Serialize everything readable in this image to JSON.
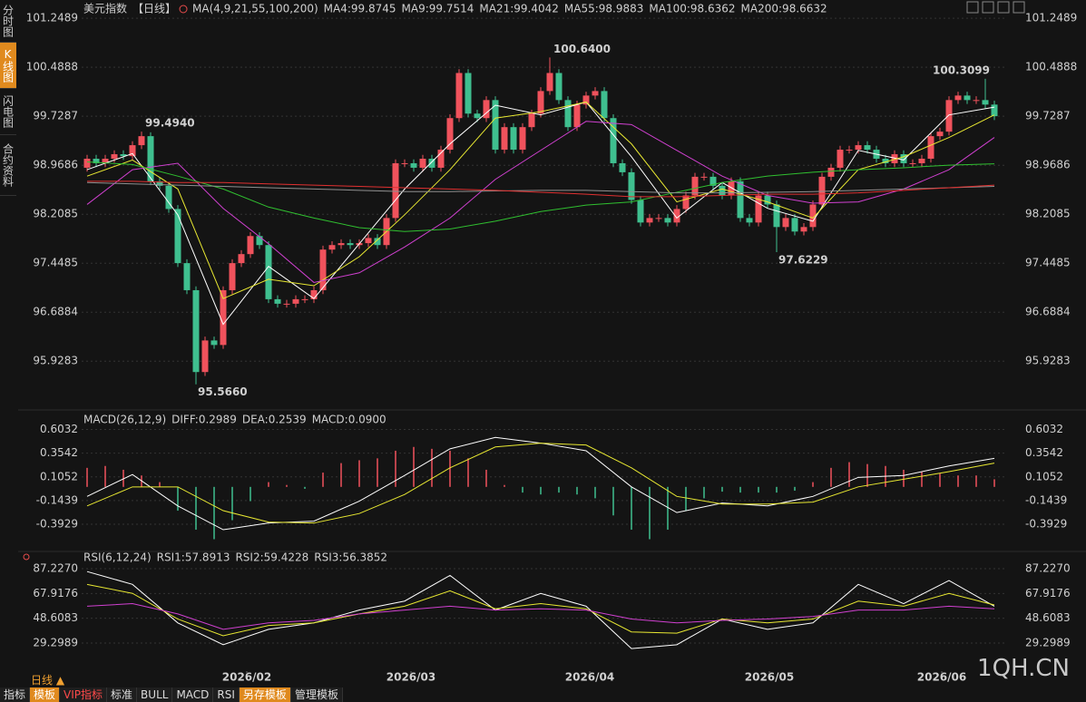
{
  "chart_data": [
    {
      "type": "candlestick",
      "title": "美元指数",
      "period": "【日线】",
      "legend_label": "MA(4,9,21,55,100,200)",
      "up_color": "#f0525c",
      "down_color": "#3fbf8f",
      "grid": true,
      "ylim": [
        95.2,
        101.42
      ],
      "yticks": [
        101.2489,
        100.4888,
        99.7287,
        98.9686,
        98.2085,
        97.4485,
        96.6884,
        95.9283
      ],
      "xticks": [
        {
          "value": 17.6,
          "label": "2026/02"
        },
        {
          "value": 35.7,
          "label": "2026/03"
        },
        {
          "value": 55.4,
          "label": "2026/04"
        },
        {
          "value": 75.2,
          "label": "2026/05"
        },
        {
          "value": 94.2,
          "label": "2026/06"
        }
      ],
      "candles": [
        [
          98.93,
          99.13,
          98.87,
          99.07
        ],
        [
          99.07,
          99.13,
          98.94,
          99.0
        ],
        [
          99.0,
          99.13,
          98.94,
          99.07
        ],
        [
          99.07,
          99.2,
          99.01,
          99.14
        ],
        [
          99.14,
          99.2,
          99.05,
          99.11
        ],
        [
          99.11,
          99.34,
          99.05,
          99.28
        ],
        [
          99.28,
          99.49,
          99.22,
          99.42
        ],
        [
          99.42,
          99.48,
          98.66,
          98.72
        ],
        [
          98.72,
          98.78,
          98.59,
          98.65
        ],
        [
          98.65,
          98.71,
          98.23,
          98.29
        ],
        [
          98.29,
          98.35,
          97.39,
          97.45
        ],
        [
          97.45,
          97.51,
          96.97,
          97.03
        ],
        [
          97.03,
          97.09,
          95.57,
          95.76
        ],
        [
          95.76,
          96.31,
          95.7,
          96.25
        ],
        [
          96.25,
          96.31,
          96.12,
          96.18
        ],
        [
          96.18,
          97.09,
          96.12,
          97.03
        ],
        [
          97.03,
          97.51,
          96.97,
          97.45
        ],
        [
          97.45,
          97.65,
          97.39,
          97.59
        ],
        [
          97.59,
          97.93,
          97.53,
          97.87
        ],
        [
          97.87,
          97.93,
          97.67,
          97.73
        ],
        [
          97.73,
          97.79,
          96.83,
          96.89
        ],
        [
          96.89,
          96.95,
          96.76,
          96.82
        ],
        [
          96.82,
          96.88,
          96.76,
          96.82
        ],
        [
          96.82,
          96.95,
          96.76,
          96.89
        ],
        [
          96.89,
          96.95,
          96.83,
          96.89
        ],
        [
          96.89,
          97.09,
          96.83,
          97.03
        ],
        [
          97.03,
          97.72,
          96.97,
          97.66
        ],
        [
          97.66,
          97.79,
          97.6,
          97.73
        ],
        [
          97.73,
          97.82,
          97.67,
          97.76
        ],
        [
          97.76,
          97.82,
          97.67,
          97.73
        ],
        [
          97.73,
          97.82,
          97.67,
          97.76
        ],
        [
          97.76,
          97.9,
          97.7,
          97.84
        ],
        [
          97.84,
          97.9,
          97.67,
          97.73
        ],
        [
          97.73,
          98.21,
          97.67,
          98.15
        ],
        [
          98.15,
          99.06,
          98.09,
          99.0
        ],
        [
          99.0,
          99.06,
          98.94,
          99.0
        ],
        [
          99.0,
          99.06,
          98.87,
          98.93
        ],
        [
          98.93,
          99.13,
          98.87,
          99.07
        ],
        [
          99.07,
          99.13,
          98.87,
          98.93
        ],
        [
          98.93,
          99.27,
          98.87,
          99.21
        ],
        [
          99.21,
          99.76,
          99.15,
          99.7
        ],
        [
          99.7,
          100.46,
          99.64,
          100.4
        ],
        [
          100.4,
          100.46,
          99.71,
          99.77
        ],
        [
          99.77,
          99.83,
          99.64,
          99.7
        ],
        [
          99.7,
          100.04,
          99.64,
          99.98
        ],
        [
          99.98,
          100.04,
          99.15,
          99.21
        ],
        [
          99.21,
          99.62,
          99.15,
          99.56
        ],
        [
          99.56,
          99.62,
          99.15,
          99.21
        ],
        [
          99.21,
          99.62,
          99.15,
          99.56
        ],
        [
          99.56,
          99.83,
          99.5,
          99.77
        ],
        [
          99.77,
          100.18,
          99.71,
          100.12
        ],
        [
          100.12,
          100.64,
          100.06,
          100.4
        ],
        [
          100.4,
          100.46,
          99.92,
          99.98
        ],
        [
          99.98,
          100.04,
          99.5,
          99.56
        ],
        [
          99.56,
          99.97,
          99.5,
          99.91
        ],
        [
          99.91,
          100.11,
          99.85,
          100.05
        ],
        [
          100.05,
          100.18,
          99.99,
          100.12
        ],
        [
          100.12,
          100.18,
          99.64,
          99.7
        ],
        [
          99.7,
          99.76,
          98.94,
          99.0
        ],
        [
          99.0,
          99.06,
          98.8,
          98.86
        ],
        [
          98.86,
          98.92,
          98.37,
          98.43
        ],
        [
          98.43,
          98.49,
          98.02,
          98.08
        ],
        [
          98.08,
          98.21,
          98.02,
          98.15
        ],
        [
          98.15,
          98.21,
          98.09,
          98.15
        ],
        [
          98.15,
          98.21,
          98.02,
          98.08
        ],
        [
          98.08,
          98.35,
          98.02,
          98.29
        ],
        [
          98.29,
          98.56,
          98.23,
          98.5
        ],
        [
          98.5,
          98.85,
          98.44,
          98.79
        ],
        [
          98.79,
          98.85,
          98.73,
          98.79
        ],
        [
          98.79,
          98.85,
          98.59,
          98.65
        ],
        [
          98.65,
          98.71,
          98.44,
          98.5
        ],
        [
          98.5,
          98.78,
          98.44,
          98.72
        ],
        [
          98.72,
          98.78,
          98.09,
          98.15
        ],
        [
          98.15,
          98.21,
          98.02,
          98.08
        ],
        [
          98.08,
          98.56,
          98.02,
          98.5
        ],
        [
          98.5,
          98.56,
          98.3,
          98.36
        ],
        [
          98.36,
          98.42,
          97.62,
          98.01
        ],
        [
          98.01,
          98.21,
          97.95,
          98.15
        ],
        [
          98.15,
          98.21,
          97.88,
          97.94
        ],
        [
          97.94,
          98.07,
          97.88,
          98.01
        ],
        [
          98.01,
          98.42,
          97.95,
          98.36
        ],
        [
          98.36,
          98.85,
          98.3,
          98.79
        ],
        [
          98.79,
          98.99,
          98.73,
          98.93
        ],
        [
          98.93,
          99.27,
          98.87,
          99.21
        ],
        [
          99.21,
          99.27,
          99.15,
          99.21
        ],
        [
          99.21,
          99.34,
          99.15,
          99.28
        ],
        [
          99.28,
          99.34,
          99.15,
          99.21
        ],
        [
          99.21,
          99.27,
          99.01,
          99.07
        ],
        [
          99.07,
          99.13,
          98.94,
          99.0
        ],
        [
          99.0,
          99.2,
          98.94,
          99.14
        ],
        [
          99.14,
          99.2,
          98.94,
          99.0
        ],
        [
          99.0,
          99.06,
          98.94,
          99.0
        ],
        [
          99.0,
          99.13,
          98.94,
          99.07
        ],
        [
          99.07,
          99.48,
          99.01,
          99.42
        ],
        [
          99.42,
          99.55,
          99.36,
          99.49
        ],
        [
          99.49,
          100.04,
          99.43,
          99.98
        ],
        [
          99.98,
          100.11,
          99.92,
          100.05
        ],
        [
          100.05,
          100.11,
          99.92,
          99.98
        ],
        [
          99.98,
          100.04,
          99.92,
          99.98
        ],
        [
          99.98,
          100.31,
          99.85,
          99.91
        ],
        [
          99.91,
          99.97,
          99.67,
          99.73
        ]
      ],
      "annotations": [
        {
          "label": "99.4940",
          "color": "#e84c4c"
        },
        {
          "label": "95.5660",
          "color": "#3fbf8f"
        },
        {
          "label": "100.6400",
          "color": "#e84c4c"
        },
        {
          "label": "100.3099",
          "color": "#e84c4c"
        },
        {
          "label": "97.6229",
          "color": "#3fbf8f"
        }
      ],
      "x": [
        0,
        5,
        10,
        15,
        20,
        25,
        30,
        35,
        40,
        45,
        50,
        55,
        60,
        65,
        70,
        75,
        80,
        85,
        90,
        95,
        100
      ],
      "series": [
        {
          "name": "MA4:99.8745",
          "color": "#ffffff",
          "values": [
            98.9,
            99.15,
            98.2,
            96.5,
            97.4,
            96.9,
            97.75,
            98.6,
            99.3,
            99.9,
            99.75,
            99.95,
            99.1,
            98.15,
            98.7,
            98.3,
            98.1,
            99.2,
            99.05,
            99.75,
            99.87
          ]
        },
        {
          "name": "MA9:99.7514",
          "color": "#e8e832",
          "values": [
            98.8,
            99.05,
            98.6,
            96.9,
            97.2,
            97.1,
            97.55,
            98.2,
            98.9,
            99.7,
            99.8,
            99.95,
            99.3,
            98.4,
            98.6,
            98.4,
            98.15,
            98.9,
            99.1,
            99.4,
            99.75
          ]
        },
        {
          "name": "MA21:99.4042",
          "color": "#d040d0",
          "values": [
            98.36,
            98.9,
            99.0,
            98.3,
            97.75,
            97.15,
            97.3,
            97.7,
            98.15,
            98.75,
            99.2,
            99.65,
            99.6,
            99.2,
            98.8,
            98.5,
            98.38,
            98.4,
            98.6,
            98.9,
            99.4
          ]
        },
        {
          "name": "MA55:98.9883",
          "color": "#30c030",
          "values": [
            99.02,
            98.98,
            98.8,
            98.6,
            98.32,
            98.15,
            98.0,
            97.94,
            97.98,
            98.1,
            98.25,
            98.35,
            98.4,
            98.55,
            98.7,
            98.8,
            98.86,
            98.9,
            98.93,
            98.97,
            98.99
          ]
        },
        {
          "name": "MA100:98.6362",
          "color": "#909090",
          "values": [
            98.7,
            98.68,
            98.66,
            98.64,
            98.62,
            98.6,
            98.58,
            98.56,
            98.56,
            98.57,
            98.58,
            98.58,
            98.56,
            98.54,
            98.54,
            98.55,
            98.56,
            98.58,
            98.6,
            98.62,
            98.64
          ]
        },
        {
          "name": "MA200:98.6632",
          "color": "#e03030",
          "values": [
            98.72,
            98.72,
            98.7,
            98.7,
            98.68,
            98.66,
            98.64,
            98.62,
            98.6,
            98.58,
            98.55,
            98.52,
            98.48,
            98.48,
            98.5,
            98.52,
            98.52,
            98.54,
            98.58,
            98.62,
            98.66
          ]
        }
      ]
    },
    {
      "type": "macd",
      "title": "MACD(26,12,9)",
      "grid": true,
      "ylim": [
        -0.65,
        0.78
      ],
      "yticks": [
        0.6032,
        0.3542,
        0.1052,
        -0.1439,
        -0.3929
      ],
      "histogram_name": "MACD:0.0900",
      "histogram_name_color": "#d040d0",
      "up_color": "#f0525c",
      "down_color": "#3fbf8f",
      "histogram": [
        0.2,
        0.22,
        0.18,
        0.12,
        0.05,
        -0.25,
        -0.45,
        -0.55,
        -0.35,
        -0.15,
        0.05,
        0.02,
        -0.02,
        0.15,
        0.25,
        0.28,
        0.3,
        0.38,
        0.42,
        0.4,
        0.38,
        0.3,
        0.18,
        0.02,
        -0.06,
        -0.08,
        -0.06,
        -0.08,
        -0.12,
        -0.3,
        -0.45,
        -0.55,
        -0.45,
        -0.25,
        -0.12,
        -0.05,
        -0.06,
        -0.06,
        -0.06,
        -0.04,
        0.05,
        0.2,
        0.26,
        0.24,
        0.22,
        0.18,
        0.16,
        0.14,
        0.12,
        0.12,
        0.08
      ],
      "x": [
        0,
        5,
        10,
        15,
        20,
        25,
        30,
        35,
        40,
        45,
        50,
        55,
        60,
        65,
        70,
        75,
        80,
        85,
        90,
        95,
        100
      ],
      "series": [
        {
          "name": "DIFF:0.2989",
          "color": "#ffffff",
          "values": [
            -0.1,
            0.13,
            -0.2,
            -0.45,
            -0.38,
            -0.36,
            -0.15,
            0.12,
            0.4,
            0.52,
            0.46,
            0.38,
            0.0,
            -0.27,
            -0.17,
            -0.2,
            -0.1,
            0.1,
            0.12,
            0.22,
            0.3
          ]
        },
        {
          "name": "DEA:0.2539",
          "color": "#e8e832",
          "values": [
            -0.2,
            0.0,
            0.0,
            -0.25,
            -0.37,
            -0.38,
            -0.28,
            -0.08,
            0.2,
            0.42,
            0.46,
            0.44,
            0.2,
            -0.1,
            -0.18,
            -0.18,
            -0.16,
            0.0,
            0.08,
            0.16,
            0.25
          ]
        }
      ]
    },
    {
      "type": "rsi",
      "title": "RSI(6,12,24)",
      "grid": true,
      "ylim": [
        7.4,
        93.6
      ],
      "yticks": [
        {
          "value": 87.227,
          "label": "87.2270"
        },
        67.9176,
        48.6083,
        29.2989
      ],
      "x": [
        0,
        5,
        10,
        15,
        20,
        25,
        30,
        35,
        40,
        45,
        50,
        55,
        60,
        65,
        70,
        75,
        80,
        85,
        90,
        95,
        100
      ],
      "series": [
        {
          "name": "RSI1:57.8913",
          "color": "#ffffff",
          "values": [
            85,
            75,
            45,
            28,
            40,
            45,
            55,
            62,
            82,
            55,
            68,
            58,
            25,
            28,
            48,
            40,
            45,
            75,
            60,
            78,
            58
          ]
        },
        {
          "name": "RSI2:59.4228",
          "color": "#e8e832",
          "values": [
            75,
            68,
            48,
            35,
            43,
            45,
            52,
            58,
            70,
            56,
            60,
            56,
            38,
            37,
            48,
            45,
            48,
            62,
            58,
            68,
            59
          ]
        },
        {
          "name": "RSI3:56.3852",
          "color": "#d040d0",
          "values": [
            58,
            60,
            52,
            40,
            45,
            47,
            52,
            55,
            58,
            55,
            56,
            55,
            48,
            45,
            47,
            48,
            50,
            55,
            55,
            58,
            56
          ]
        }
      ]
    }
  ],
  "ui": {
    "sidebar": [
      "分时图",
      "K线图",
      "闪电图",
      "合约资料"
    ],
    "period_toggle": "日线 ▲",
    "watermark": "1QH.CN",
    "toolbar": [
      "指标",
      "模板",
      "VIP指标",
      "标准",
      "BULL",
      "MACD",
      "RSI",
      "另存模板",
      "管理模板"
    ]
  }
}
